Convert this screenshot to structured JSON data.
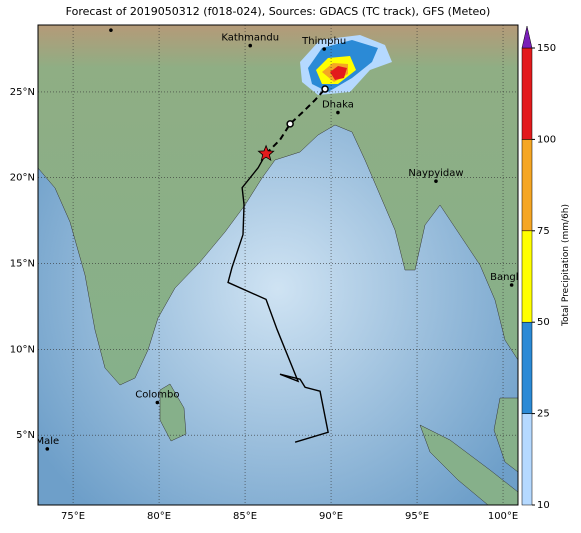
{
  "title": "Forecast of 2019050312 (f018-024), Sources: GDACS (TC track), GFS (Meteo)",
  "lon_range": [
    72.96,
    100.87
  ],
  "lat_range": [
    0.93,
    28.9
  ],
  "lon_ticks": [
    {
      "value": 75,
      "label": "75°E"
    },
    {
      "value": 80,
      "label": "80°E"
    },
    {
      "value": 85,
      "label": "85°E"
    },
    {
      "value": 90,
      "label": "90°E"
    },
    {
      "value": 95,
      "label": "95°E"
    },
    {
      "value": 100,
      "label": "100°E"
    }
  ],
  "lat_ticks": [
    {
      "value": 5,
      "label": "5°N"
    },
    {
      "value": 10,
      "label": "10°N"
    },
    {
      "value": 15,
      "label": "15°N"
    },
    {
      "value": 20,
      "label": "20°N"
    },
    {
      "value": 25,
      "label": "25°N"
    }
  ],
  "cities": [
    {
      "name": "Kathmandu",
      "lon": 85.3,
      "lat": 27.7
    },
    {
      "name": "Thimphu",
      "lon": 89.6,
      "lat": 27.5
    },
    {
      "name": "Dhaka",
      "lon": 90.4,
      "lat": 23.8
    },
    {
      "name": "Naypyidaw",
      "lon": 96.1,
      "lat": 19.8
    },
    {
      "name": "Bangkok",
      "lon": 100.5,
      "lat": 13.75
    },
    {
      "name": "Colombo",
      "lon": 79.9,
      "lat": 6.9
    },
    {
      "name": "Male",
      "lon": 73.5,
      "lat": 4.2
    }
  ],
  "unlabeled_points": [
    {
      "lon": 77.2,
      "lat": 28.6
    }
  ],
  "track": {
    "observed": {
      "lon": [
        87.91,
        89.83,
        89.36,
        88.49,
        88.2,
        87.03,
        88.08,
        86.86,
        86.22,
        84.01,
        84.24,
        84.88,
        84.94,
        84.83,
        85.76,
        86.22
      ],
      "lat": [
        4.59,
        5.17,
        7.56,
        7.79,
        8.26,
        8.55,
        8.14,
        11.16,
        12.91,
        13.9,
        14.77,
        16.69,
        18.43,
        19.42,
        20.58,
        21.4
      ]
    },
    "forecast": {
      "lon": [
        86.22,
        87.03,
        87.62,
        88.37,
        89.07,
        89.65
      ],
      "lat": [
        21.4,
        22.21,
        23.14,
        23.84,
        24.53,
        25.17
      ]
    }
  },
  "colorbar": {
    "label": "Total Precipitation (mm/6h)",
    "levels": [
      10,
      25,
      50,
      75,
      100,
      150
    ],
    "colors": [
      "#b5d9ff",
      "#2b8ad6",
      "#ffff00",
      "#f5a623",
      "#e31a1c"
    ],
    "extend_color": "#7a1fb8"
  }
}
